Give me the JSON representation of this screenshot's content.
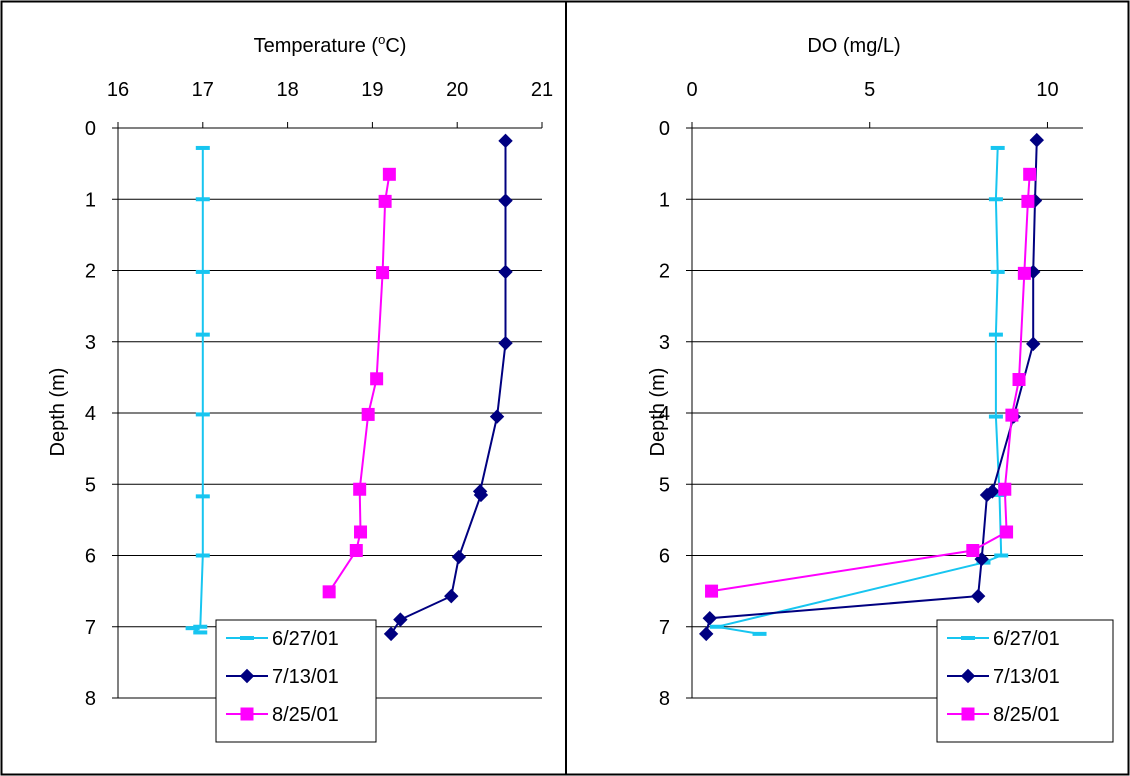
{
  "chart_data": [
    {
      "type": "line",
      "title": "",
      "xlabel": "Temperature (°C)",
      "xlabel_main": "Temperature (",
      "xlabel_sup": "o",
      "xlabel_tail": "C)",
      "ylabel": "Depth (m)",
      "xlim": [
        16,
        21
      ],
      "ylim": [
        0,
        8
      ],
      "y_inverted": true,
      "x_axis_position": "top",
      "x_ticks": [
        "16",
        "17",
        "18",
        "19",
        "20",
        "21"
      ],
      "y_ticks": [
        "0",
        "1",
        "2",
        "3",
        "4",
        "5",
        "6",
        "7",
        "8"
      ],
      "grid": "horizontal",
      "legend_position": "bottom-right",
      "series": [
        {
          "name": "6/27/01",
          "color": "#17c5f0",
          "marker": "dash",
          "points": [
            [
              17.0,
              0.28
            ],
            [
              17.0,
              1.0
            ],
            [
              17.0,
              2.02
            ],
            [
              17.0,
              2.9
            ],
            [
              17.0,
              4.02
            ],
            [
              17.0,
              5.17
            ],
            [
              17.0,
              6.0
            ],
            [
              16.97,
              7.0
            ],
            [
              16.88,
              7.02
            ],
            [
              16.97,
              7.08
            ]
          ]
        },
        {
          "name": "7/13/01",
          "color": "#000080",
          "marker": "diamond",
          "points": [
            [
              20.57,
              0.18
            ],
            [
              20.57,
              1.02
            ],
            [
              20.57,
              2.02
            ],
            [
              20.57,
              3.02
            ],
            [
              20.47,
              4.05
            ],
            [
              20.27,
              5.1
            ],
            [
              20.28,
              5.15
            ],
            [
              20.02,
              6.02
            ],
            [
              19.93,
              6.57
            ],
            [
              19.33,
              6.9
            ],
            [
              19.22,
              7.1
            ]
          ]
        },
        {
          "name": "8/25/01",
          "color": "#ff00ff",
          "marker": "square",
          "points": [
            [
              19.2,
              0.65
            ],
            [
              19.15,
              1.03
            ],
            [
              19.12,
              2.03
            ],
            [
              19.05,
              3.52
            ],
            [
              18.95,
              4.02
            ],
            [
              18.85,
              5.07
            ],
            [
              18.86,
              5.67
            ],
            [
              18.81,
              5.93
            ],
            [
              18.49,
              6.51
            ]
          ]
        }
      ]
    },
    {
      "type": "line",
      "title": "",
      "xlabel": "DO (mg/L)",
      "ylabel": "Depth (m)",
      "xlim": [
        0,
        11
      ],
      "ylim": [
        0,
        8
      ],
      "y_inverted": true,
      "x_axis_position": "top",
      "x_ticks": [
        "0",
        "5",
        "10"
      ],
      "x_tick_values": [
        0,
        5,
        10
      ],
      "y_ticks": [
        "0",
        "1",
        "2",
        "3",
        "4",
        "5",
        "6",
        "7",
        "8"
      ],
      "grid": "horizontal",
      "legend_position": "bottom-right",
      "series": [
        {
          "name": "6/27/01",
          "color": "#17c5f0",
          "marker": "dash",
          "points": [
            [
              8.6,
              0.28
            ],
            [
              8.55,
              1.0
            ],
            [
              8.6,
              2.02
            ],
            [
              8.55,
              2.9
            ],
            [
              8.55,
              4.05
            ],
            [
              8.65,
              5.15
            ],
            [
              8.7,
              6.0
            ],
            [
              8.2,
              6.1
            ],
            [
              0.7,
              7.0
            ],
            [
              1.9,
              7.1
            ]
          ]
        },
        {
          "name": "7/13/01",
          "color": "#000080",
          "marker": "diamond",
          "points": [
            [
              9.7,
              0.17
            ],
            [
              9.65,
              1.02
            ],
            [
              9.6,
              2.02
            ],
            [
              9.6,
              3.03
            ],
            [
              9.05,
              4.05
            ],
            [
              8.45,
              5.1
            ],
            [
              8.3,
              5.15
            ],
            [
              8.15,
              6.05
            ],
            [
              8.05,
              6.57
            ],
            [
              0.5,
              6.88
            ],
            [
              0.4,
              7.1
            ]
          ]
        },
        {
          "name": "8/25/01",
          "color": "#ff00ff",
          "marker": "square",
          "points": [
            [
              9.5,
              0.65
            ],
            [
              9.45,
              1.03
            ],
            [
              9.35,
              2.04
            ],
            [
              9.2,
              3.53
            ],
            [
              9.0,
              4.03
            ],
            [
              8.8,
              5.07
            ],
            [
              8.85,
              5.67
            ],
            [
              7.9,
              5.93
            ],
            [
              0.55,
              6.5
            ]
          ]
        }
      ]
    }
  ]
}
